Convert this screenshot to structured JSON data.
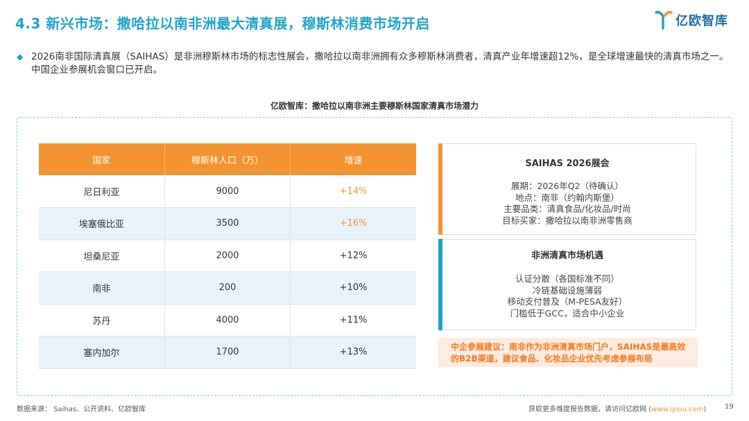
{
  "header": {
    "title": "4.3 新兴市场：撒哈拉以南非洲最大清真展，穆斯林消费市场开启",
    "logo_text": "亿欧智库"
  },
  "intro": {
    "text": "2026南非国际清真展（SAIHAS）是非洲穆斯林市场的标志性展会，撒哈拉以南非洲拥有众多穆斯林消费者，清真产业年增速超12%，是全球增速最快的清真市场之一。中国企业参展机会窗口已开启。"
  },
  "chart": {
    "title": "亿欧智库：撒哈拉以南非洲主要穆斯林国家清真市场潜力"
  },
  "table": {
    "headers": [
      "国家",
      "穆斯林人口（万）",
      "增速"
    ],
    "rows": [
      {
        "country": "尼日利亚",
        "population": "9000",
        "growth": "+14%"
      },
      {
        "country": "埃塞俄比亚",
        "population": "3500",
        "growth": "+16%"
      },
      {
        "country": "坦桑尼亚",
        "population": "2000",
        "growth": "+12%"
      },
      {
        "country": "南非",
        "population": "200",
        "growth": "+10%"
      },
      {
        "country": "苏丹",
        "population": "4000",
        "growth": "+11%"
      },
      {
        "country": "塞内加尔",
        "population": "1700",
        "growth": "+13%"
      }
    ]
  },
  "cards": {
    "expo": {
      "title": "SAIHAS 2026展会",
      "lines": [
        "展期：2026年Q2（待确认）",
        "地点：南非（约翰内斯堡）",
        "主要品类：清真食品/化妆品/时尚",
        "目标买家：撒哈拉以南非洲零售商"
      ]
    },
    "opportunity": {
      "title": "非洲清真市场机遇",
      "lines": [
        "认证分散（各国标准不同）",
        "冷链基础设施薄弱",
        "移动支付普及（M-PESA友好）",
        "门槛低于GCC，适合中小企业"
      ]
    }
  },
  "advice": {
    "text": "中企参展建议：南非作为非洲清真市场门户，SAIHAS是最高效的B2B渠道，建议食品、化妆品企业优先考虑参展布局"
  },
  "footer": {
    "source": "数据来源：  Saihas、公开资料、亿欧智库",
    "note": "获取更多维度报告数据，请访问亿欧网 (",
    "link": "www.iyiou.com",
    "note_end": ")",
    "page": "19"
  },
  "colors": {
    "accent_blue": "#1fa3c8",
    "accent_orange": "#f39230",
    "row_alt": "#e8f3fb"
  }
}
